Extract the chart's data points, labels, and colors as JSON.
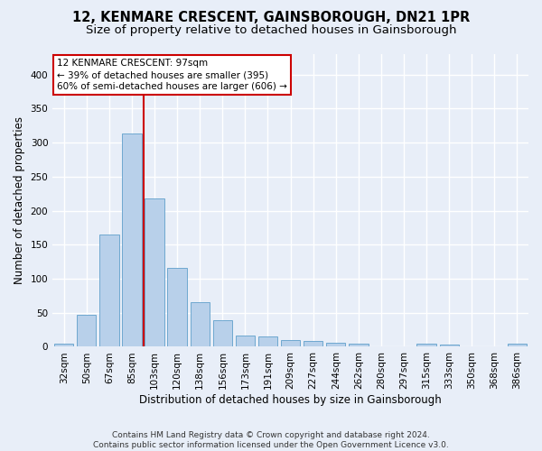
{
  "title": "12, KENMARE CRESCENT, GAINSBOROUGH, DN21 1PR",
  "subtitle": "Size of property relative to detached houses in Gainsborough",
  "xlabel": "Distribution of detached houses by size in Gainsborough",
  "ylabel": "Number of detached properties",
  "categories": [
    "32sqm",
    "50sqm",
    "67sqm",
    "85sqm",
    "103sqm",
    "120sqm",
    "138sqm",
    "156sqm",
    "173sqm",
    "191sqm",
    "209sqm",
    "227sqm",
    "244sqm",
    "262sqm",
    "280sqm",
    "297sqm",
    "315sqm",
    "333sqm",
    "350sqm",
    "368sqm",
    "386sqm"
  ],
  "values": [
    5,
    47,
    165,
    313,
    218,
    116,
    66,
    39,
    16,
    15,
    10,
    9,
    6,
    4,
    0,
    0,
    4,
    3,
    0,
    0,
    4
  ],
  "bar_color": "#b8d0ea",
  "bar_edge_color": "#6fa8d0",
  "vline_pos": 3.5,
  "vline_color": "#cc0000",
  "annotation_text": "12 KENMARE CRESCENT: 97sqm\n← 39% of detached houses are smaller (395)\n60% of semi-detached houses are larger (606) →",
  "annotation_box_color": "#ffffff",
  "annotation_box_edge": "#cc0000",
  "ylim": [
    0,
    430
  ],
  "yticks": [
    0,
    50,
    100,
    150,
    200,
    250,
    300,
    350,
    400
  ],
  "footer": "Contains HM Land Registry data © Crown copyright and database right 2024.\nContains public sector information licensed under the Open Government Licence v3.0.",
  "bg_color": "#e8eef8",
  "plot_bg_color": "#e8eef8",
  "grid_color": "#ffffff",
  "title_fontsize": 10.5,
  "subtitle_fontsize": 9.5,
  "label_fontsize": 8.5,
  "tick_fontsize": 7.5,
  "footer_fontsize": 6.5
}
